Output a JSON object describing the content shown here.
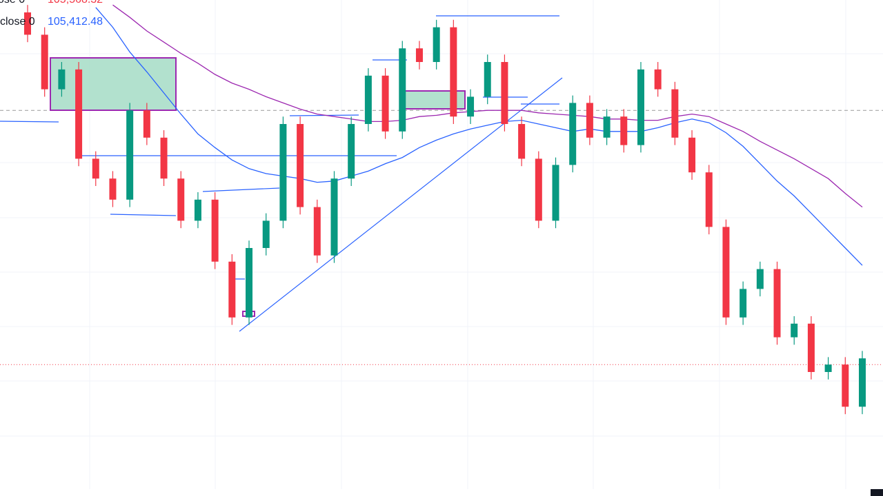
{
  "chart_data": {
    "type": "candlestick",
    "legend": [
      {
        "label": "ose 0",
        "value_label": "105,568.32",
        "color": "#f23645"
      },
      {
        "label": "close 0",
        "value_label": "105,412.48",
        "color": "#2962ff"
      }
    ],
    "ylim": [
      102000,
      106000
    ],
    "up_color": "#089981",
    "down_color": "#f23645",
    "open": [
      105900,
      105720,
      105280,
      105440,
      104720,
      104560,
      104390,
      105110,
      104890,
      104560,
      104220,
      104390,
      103890,
      103440,
      104000,
      104220,
      105000,
      104330,
      103940,
      104560,
      105000,
      105390,
      104940,
      105610,
      105500,
      105780,
      105060,
      105220,
      105500,
      105000,
      104720,
      104220,
      104670,
      105170,
      104890,
      105060,
      104830,
      105440,
      105280,
      104890,
      104610,
      104170,
      103440,
      103670,
      103830,
      103280,
      103390,
      103000,
      103060,
      102720
    ],
    "high": [
      105960,
      105780,
      105500,
      105500,
      104780,
      104620,
      105170,
      105170,
      104950,
      104620,
      104450,
      104450,
      103950,
      104060,
      104280,
      105060,
      105060,
      104390,
      104620,
      105060,
      105450,
      105450,
      105670,
      105670,
      105840,
      105840,
      105280,
      105560,
      105560,
      105060,
      104780,
      104730,
      105230,
      105230,
      105120,
      105120,
      105500,
      105500,
      105340,
      104950,
      104670,
      104230,
      103730,
      103890,
      103890,
      103450,
      103450,
      103120,
      103120,
      103170
    ],
    "low": [
      105660,
      105220,
      105220,
      104660,
      104500,
      104330,
      104330,
      104830,
      104500,
      104160,
      104160,
      103830,
      103380,
      103380,
      103940,
      104160,
      104270,
      103880,
      103880,
      104500,
      104940,
      104880,
      104880,
      105440,
      105440,
      105000,
      105000,
      105160,
      104940,
      104660,
      104160,
      104160,
      104610,
      104830,
      104830,
      104770,
      104770,
      105220,
      104830,
      104550,
      104110,
      103380,
      103380,
      103610,
      103220,
      103220,
      102940,
      102940,
      102660,
      102660
    ],
    "close": [
      105720,
      105280,
      105440,
      104720,
      104560,
      104390,
      105110,
      104890,
      104560,
      104220,
      104390,
      103890,
      103440,
      104000,
      104220,
      105000,
      104330,
      103940,
      104560,
      105000,
      105390,
      104940,
      105610,
      105500,
      105780,
      105060,
      105220,
      105500,
      105000,
      104720,
      104220,
      104670,
      105170,
      104890,
      105060,
      104830,
      105440,
      105280,
      104890,
      104610,
      104170,
      103440,
      103670,
      103830,
      103280,
      103390,
      103000,
      103060,
      102720,
      103110
    ],
    "series": [
      {
        "name": "close 0",
        "color": "#2962ff",
        "values": [
          null,
          null,
          null,
          null,
          105940,
          105780,
          105580,
          105420,
          105250,
          105080,
          104920,
          104810,
          104710,
          104640,
          104600,
          104580,
          104560,
          104530,
          104540,
          104580,
          104620,
          104680,
          104730,
          104810,
          104870,
          104920,
          104960,
          104990,
          105020,
          105030,
          105000,
          104970,
          104940,
          104960,
          104940,
          104940,
          104940,
          104970,
          105010,
          105040,
          105010,
          104930,
          104820,
          104680,
          104540,
          104420,
          104280,
          104140,
          104000,
          103860
        ]
      },
      {
        "name": "ose 0",
        "color": "#9c27b0",
        "values": [
          null,
          null,
          null,
          null,
          null,
          105960,
          105860,
          105750,
          105660,
          105570,
          105490,
          105400,
          105330,
          105280,
          105220,
          105170,
          105120,
          105080,
          105060,
          105040,
          105020,
          105020,
          105030,
          105060,
          105070,
          105090,
          105100,
          105110,
          105110,
          105110,
          105090,
          105080,
          105070,
          105060,
          105040,
          105040,
          105030,
          105030,
          105060,
          105080,
          105060,
          105000,
          104940,
          104860,
          104790,
          104720,
          104640,
          104560,
          104440,
          104330
        ]
      }
    ],
    "reference_lines": [
      {
        "value": 105110,
        "color": "#999999",
        "style": "dashed"
      },
      {
        "value": 103060,
        "color": "#f23645",
        "style": "dotted"
      }
    ]
  }
}
